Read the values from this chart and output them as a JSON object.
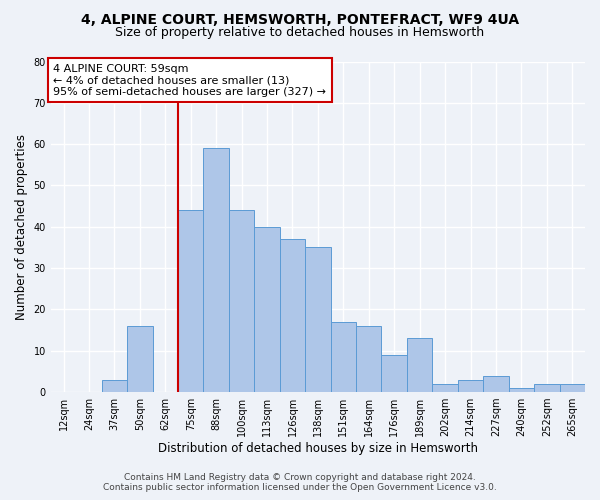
{
  "title": "4, ALPINE COURT, HEMSWORTH, PONTEFRACT, WF9 4UA",
  "subtitle": "Size of property relative to detached houses in Hemsworth",
  "xlabel": "Distribution of detached houses by size in Hemsworth",
  "ylabel": "Number of detached properties",
  "bin_labels": [
    "12sqm",
    "24sqm",
    "37sqm",
    "50sqm",
    "62sqm",
    "75sqm",
    "88sqm",
    "100sqm",
    "113sqm",
    "126sqm",
    "138sqm",
    "151sqm",
    "164sqm",
    "176sqm",
    "189sqm",
    "202sqm",
    "214sqm",
    "227sqm",
    "240sqm",
    "252sqm",
    "265sqm"
  ],
  "bar_heights": [
    0,
    0,
    3,
    16,
    0,
    44,
    59,
    44,
    40,
    37,
    35,
    17,
    16,
    9,
    13,
    2,
    3,
    4,
    1,
    2,
    2
  ],
  "bar_color": "#aec6e8",
  "bar_edge_color": "#5b9bd5",
  "annotation_text_line1": "4 ALPINE COURT: 59sqm",
  "annotation_text_line2": "← 4% of detached houses are smaller (13)",
  "annotation_text_line3": "95% of semi-detached houses are larger (327) →",
  "annotation_box_color": "#ffffff",
  "annotation_box_edge_color": "#cc0000",
  "vline_color": "#cc0000",
  "vline_x_index": 4.5,
  "ylim": [
    0,
    80
  ],
  "yticks": [
    0,
    10,
    20,
    30,
    40,
    50,
    60,
    70,
    80
  ],
  "footer_line1": "Contains HM Land Registry data © Crown copyright and database right 2024.",
  "footer_line2": "Contains public sector information licensed under the Open Government Licence v3.0.",
  "bg_color": "#eef2f8",
  "plot_bg_color": "#eef2f8",
  "title_fontsize": 10,
  "subtitle_fontsize": 9,
  "axis_label_fontsize": 8.5,
  "tick_fontsize": 7,
  "footer_fontsize": 6.5,
  "annotation_fontsize": 8
}
